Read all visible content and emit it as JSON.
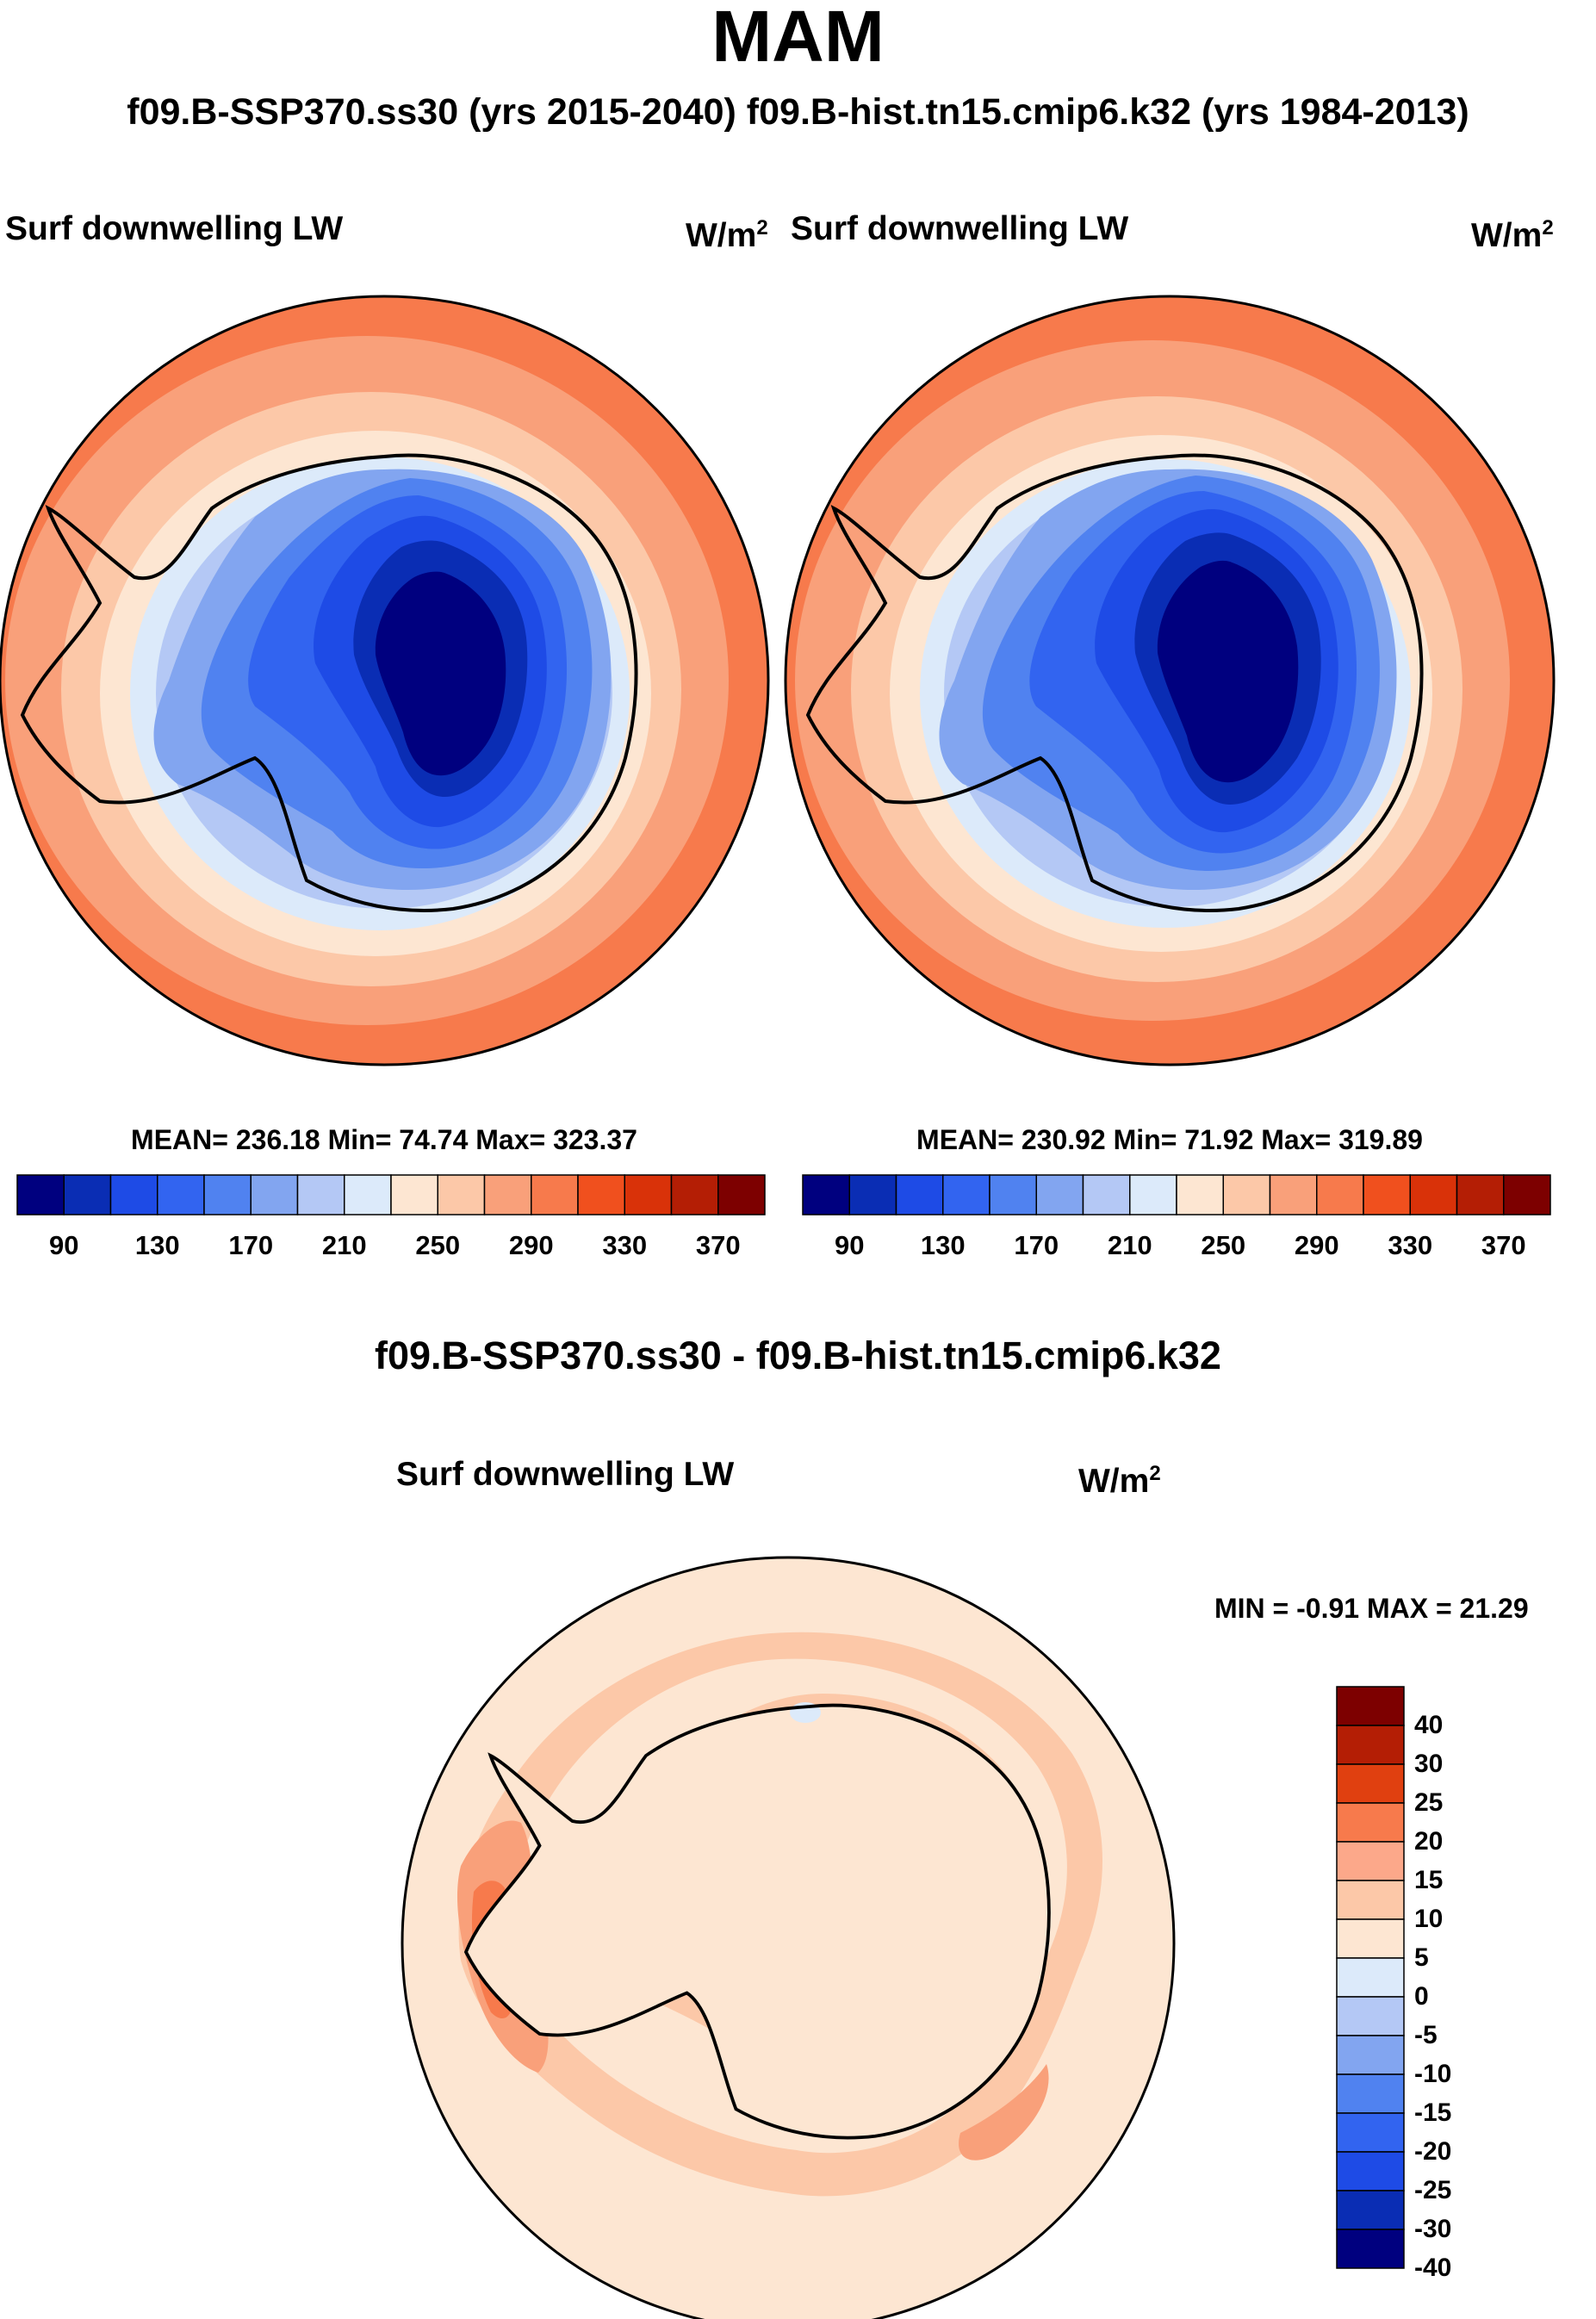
{
  "title": "MAM",
  "subtitle": "f09.B-SSP370.ss30 (yrs 2015-2040)  f09.B-hist.tn15.cmip6.k32 (yrs 1984-2013)",
  "panels": [
    {
      "label": "Surf downwelling LW",
      "units_base": "W/m",
      "units_exp": "2",
      "stats": "MEAN= 236.18  Min=  74.74  Max= 323.37"
    },
    {
      "label": "Surf downwelling LW",
      "units_base": "W/m",
      "units_exp": "2",
      "stats": "MEAN= 230.92  Min=  71.92  Max= 319.89"
    }
  ],
  "colorbar": {
    "colors": [
      "#00007f",
      "#0a2db4",
      "#1e4be6",
      "#3264f0",
      "#5082f0",
      "#82a5f0",
      "#b4c8f5",
      "#dceafa",
      "#fde6d2",
      "#fcc8a8",
      "#f9a07a",
      "#f77a4c",
      "#f0501e",
      "#d93209",
      "#b41e05",
      "#7d0000"
    ],
    "ticks": [
      "90",
      "130",
      "170",
      "210",
      "250",
      "290",
      "330",
      "370"
    ]
  },
  "difference": {
    "title": "f09.B-SSP370.ss30 - f09.B-hist.tn15.cmip6.k32",
    "label": "Surf downwelling LW",
    "units_base": "W/m",
    "units_exp": "2",
    "minmax": "MIN =  -0.91 MAX =  21.29",
    "colorbar": {
      "colors": [
        "#7d0000",
        "#b41e05",
        "#e04010",
        "#f77a4c",
        "#fca88a",
        "#fcc8a8",
        "#fde6d2",
        "#dceafa",
        "#b4c8f5",
        "#82a5f0",
        "#5082f0",
        "#3264f0",
        "#1e4be6",
        "#0a2db4",
        "#00007f"
      ],
      "ticks": [
        "40",
        "30",
        "25",
        "20",
        "15",
        "10",
        "5",
        "0",
        "-5",
        "-10",
        "-15",
        "-20",
        "-25",
        "-30",
        "-40"
      ]
    }
  }
}
